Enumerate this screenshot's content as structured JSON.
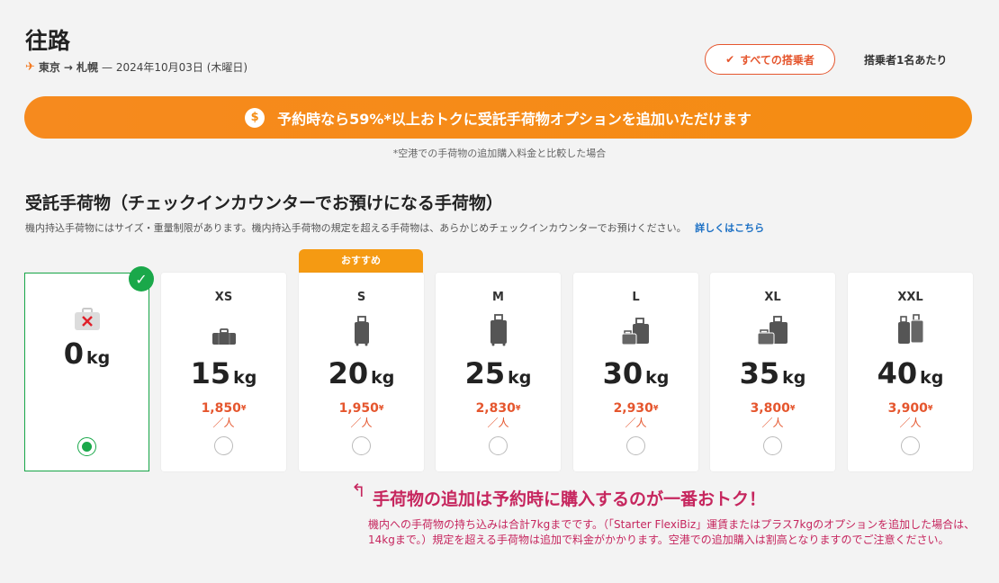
{
  "header": {
    "title": "往路",
    "route_from": "東京",
    "route_arrow": "→",
    "route_to": "札幌",
    "route_date": "— 2024年10月03日 (木曜日)",
    "all_passengers_label": "すべての搭乗者",
    "per_passenger_label": "搭乗者1名あたり"
  },
  "promo": {
    "coin_symbol": "$",
    "text": "予約時なら59%*以上おトクに受託手荷物オプションを追加いただけます",
    "footnote": "*空港での手荷物の追加購入料金と比較した場合"
  },
  "section": {
    "title": "受託手荷物（チェックインカウンターでお預けになる手荷物）",
    "description": "機内持込手荷物にはサイズ・重量制限があります。機内持込手荷物の規定を超える手荷物は、あらかじめチェックインカウンターでお預けください。",
    "details_link": "詳しくはこちら"
  },
  "recommended_label": "おすすめ",
  "options": [
    {
      "size": "",
      "weight": "0",
      "unit": "kg",
      "price": "",
      "currency": "",
      "per": "",
      "selected": true,
      "icon": "no-baggage-icon"
    },
    {
      "size": "XS",
      "weight": "15",
      "unit": "kg",
      "price": "1,850",
      "currency": "¥",
      "per": "／人",
      "selected": false,
      "icon": "bag-xs-icon"
    },
    {
      "size": "S",
      "weight": "20",
      "unit": "kg",
      "price": "1,950",
      "currency": "¥",
      "per": "／人",
      "selected": false,
      "icon": "bag-s-icon"
    },
    {
      "size": "M",
      "weight": "25",
      "unit": "kg",
      "price": "2,830",
      "currency": "¥",
      "per": "／人",
      "selected": false,
      "icon": "bag-m-icon"
    },
    {
      "size": "L",
      "weight": "30",
      "unit": "kg",
      "price": "2,930",
      "currency": "¥",
      "per": "／人",
      "selected": false,
      "icon": "bag-l-icon"
    },
    {
      "size": "XL",
      "weight": "35",
      "unit": "kg",
      "price": "3,800",
      "currency": "¥",
      "per": "／人",
      "selected": false,
      "icon": "bag-xl-icon"
    },
    {
      "size": "XXL",
      "weight": "40",
      "unit": "kg",
      "price": "3,900",
      "currency": "¥",
      "per": "／人",
      "selected": false,
      "icon": "bag-xxl-icon"
    }
  ],
  "tip": {
    "arrow": "↰",
    "title": "手荷物の追加は予約時に購入するのが一番おトク！",
    "body": "機内への手荷物の持ち込みは合計7kgまでです。（「Starter FlexiBiz」運賃またはプラス7kgのオプションを追加した場合は、14kgまで。）規定を超える手荷物は追加で料金がかかります。空港での追加購入は割高となりますのでご注意ください。"
  },
  "colors": {
    "accent": "#f58c12",
    "price": "#e5562e",
    "selected": "#1aa84a",
    "tip": "#c6265e"
  }
}
